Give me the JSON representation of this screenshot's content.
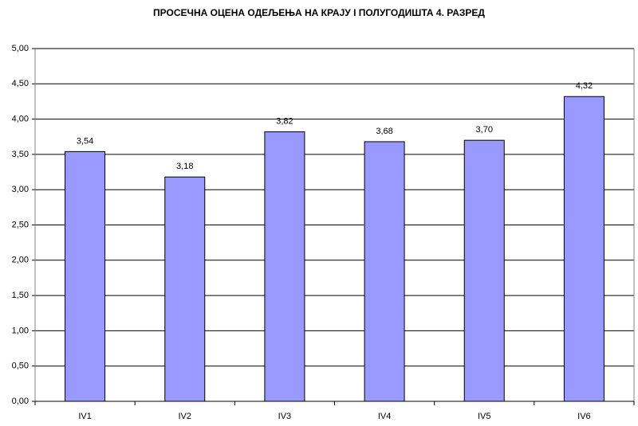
{
  "chart_data": {
    "type": "bar",
    "title": "ПРОСЕЧНА ОЦЕНА ОДЕЉЕЊА НА КРАЈУ  I ПОЛУГОДИШТА 4. РАЗРЕД",
    "categories": [
      "IV1",
      "IV2",
      "IV3",
      "IV4",
      "IV5",
      "IV6"
    ],
    "values": [
      3.54,
      3.18,
      3.82,
      3.68,
      3.7,
      4.32
    ],
    "value_labels": [
      "3,54",
      "3,18",
      "3,82",
      "3,68",
      "3,70",
      "4,32"
    ],
    "color": "#9999ff",
    "ylim": [
      0,
      5
    ],
    "yticks": [
      {
        "value": 0,
        "label": "0,00"
      },
      {
        "value": 0.5,
        "label": "0,50"
      },
      {
        "value": 1,
        "label": "1,00"
      },
      {
        "value": 1.5,
        "label": "1,50"
      },
      {
        "value": 2,
        "label": "2,00"
      },
      {
        "value": 2.5,
        "label": "2,50"
      },
      {
        "value": 3,
        "label": "3,00"
      },
      {
        "value": 3.5,
        "label": "3,50"
      },
      {
        "value": 4,
        "label": "4,00"
      },
      {
        "value": 4.5,
        "label": "4,50"
      },
      {
        "value": 5,
        "label": "5,00"
      }
    ],
    "grid": true
  }
}
